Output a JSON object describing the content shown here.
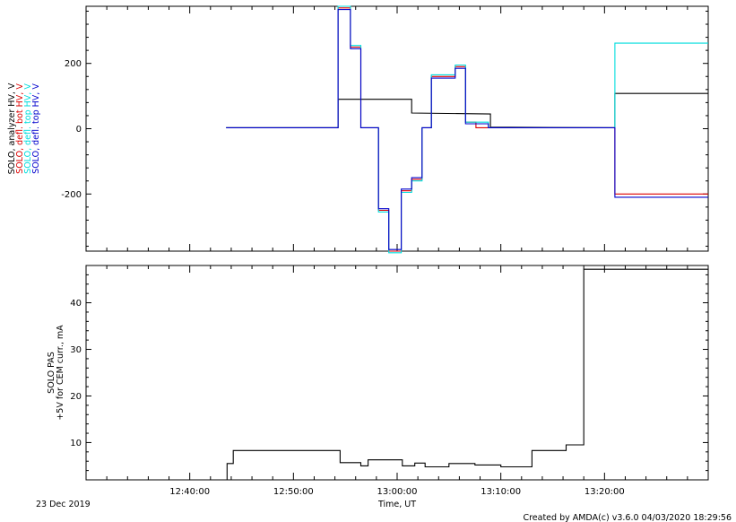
{
  "chart_data": [
    {
      "type": "line",
      "panel": "top",
      "ylabels": [
        {
          "text": "SOLO, analyzer HV, V",
          "color": "#000000"
        },
        {
          "text": "SOLO, defl. bot HV, V",
          "color": "#dd0000"
        },
        {
          "text": "SOLO, defl. top HV, V",
          "color": "#00dddd"
        },
        {
          "text": "SOLO, defl. top HV, V",
          "color": "#0000cc"
        }
      ],
      "ylim": [
        -375,
        375
      ],
      "yticks": [
        -200,
        0,
        200
      ],
      "ytick_labels": [
        "-200",
        "0",
        "200"
      ],
      "xlim_min": [
        0,
        60
      ],
      "grid": false,
      "series": [
        {
          "color": "#000000",
          "x": [
            13.5,
            24.3,
            24.3,
            31.4,
            31.4,
            39.0,
            39.0,
            51.0,
            51.0,
            60.0
          ],
          "y": [
            3,
            3,
            90,
            90,
            48,
            45,
            5,
            3,
            108,
            108
          ]
        },
        {
          "color": "#dd0000",
          "x": [
            13.5,
            24.3,
            24.3,
            25.5,
            25.5,
            26.5,
            26.5,
            28.2,
            28.2,
            29.2,
            29.2,
            30.4,
            30.4,
            31.4,
            31.4,
            32.4,
            32.4,
            33.3,
            33.3,
            35.6,
            35.6,
            36.6,
            36.6,
            37.6,
            37.6,
            38.8,
            38.8,
            51.0,
            51.0,
            60.0
          ],
          "y": [
            3,
            3,
            370,
            370,
            250,
            250,
            3,
            3,
            -250,
            -250,
            -375,
            -375,
            -190,
            -190,
            -155,
            -155,
            3,
            3,
            160,
            160,
            190,
            190,
            20,
            20,
            3,
            3,
            3,
            3,
            -200,
            -200
          ]
        },
        {
          "color": "#00dddd",
          "x": [
            13.5,
            24.3,
            24.3,
            25.5,
            25.5,
            26.5,
            26.5,
            28.2,
            28.2,
            29.2,
            29.2,
            30.4,
            30.4,
            31.4,
            31.4,
            32.4,
            32.4,
            33.3,
            33.3,
            35.6,
            35.6,
            36.6,
            36.6,
            38.8,
            38.8,
            51.0,
            51.0,
            60.0
          ],
          "y": [
            3,
            3,
            375,
            375,
            255,
            255,
            3,
            3,
            -255,
            -255,
            -380,
            -380,
            -195,
            -195,
            -160,
            -160,
            3,
            3,
            165,
            165,
            195,
            195,
            20,
            20,
            3,
            3,
            262,
            262
          ]
        },
        {
          "color": "#0000cc",
          "x": [
            13.5,
            24.3,
            24.3,
            25.5,
            25.5,
            26.5,
            26.5,
            28.2,
            28.2,
            29.2,
            29.2,
            30.4,
            30.4,
            31.4,
            31.4,
            32.4,
            32.4,
            33.3,
            33.3,
            35.6,
            35.6,
            36.6,
            36.6,
            38.8,
            38.8,
            51.0,
            51.0,
            60.0
          ],
          "y": [
            3,
            3,
            365,
            365,
            245,
            245,
            3,
            3,
            -245,
            -245,
            -370,
            -370,
            -185,
            -185,
            -150,
            -150,
            3,
            3,
            155,
            155,
            185,
            185,
            15,
            15,
            3,
            3,
            -210,
            -210
          ]
        }
      ]
    },
    {
      "type": "line",
      "panel": "bottom",
      "ylabel_lines": [
        "SOLO PAS",
        "+5V for CEM curr., mA"
      ],
      "ylim": [
        2,
        48
      ],
      "yticks": [
        10,
        20,
        30,
        40
      ],
      "ytick_labels": [
        "10",
        "20",
        "30",
        "40"
      ],
      "xlim_min": [
        0,
        60
      ],
      "xticks_min": [
        10,
        20,
        30,
        40,
        50,
        60
      ],
      "xtick_labels": [
        "12:40:00",
        "12:50:00",
        "13:00:00",
        "13:10:00",
        "13:20:00"
      ],
      "xtick_label_min": [
        10,
        20,
        30,
        40,
        50
      ],
      "xlabel": "Time, UT",
      "date_label": "23 Dec 2019",
      "grid": false,
      "series": [
        {
          "color": "#000000",
          "x": [
            13.5,
            13.6,
            13.6,
            14.2,
            14.2,
            24.5,
            24.5,
            26.5,
            26.5,
            27.2,
            27.2,
            30.5,
            30.5,
            31.7,
            31.7,
            32.7,
            32.7,
            35.0,
            35.0,
            37.5,
            37.5,
            40.0,
            40.0,
            43.0,
            43.0,
            46.3,
            46.3,
            48.0,
            48.0,
            48.3,
            48.3,
            60.0
          ],
          "y": [
            2,
            2,
            5.5,
            5.5,
            8.3,
            8.3,
            5.7,
            5.7,
            5.0,
            5.0,
            6.3,
            6.3,
            5.0,
            5.0,
            5.6,
            5.6,
            4.8,
            4.8,
            5.5,
            5.5,
            5.2,
            5.2,
            4.8,
            4.8,
            8.3,
            8.3,
            9.5,
            9.5,
            47.2,
            47.2,
            47.2,
            47.2
          ]
        }
      ]
    }
  ],
  "footer": {
    "credit": "Created by AMDA(c) v3.6.0 04/03/2020 18:29:56"
  }
}
